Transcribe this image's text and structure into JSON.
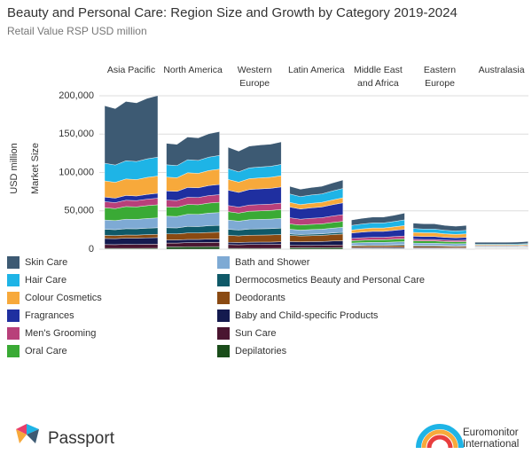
{
  "chart_data": {
    "type": "stacked-area-panels",
    "title": "Beauty and Personal Care: Region Size and Growth by Category 2019-2024",
    "subtitle": "Retail Value RSP USD million",
    "y_label": "USD million",
    "y_label_2": "Market Size",
    "ylim": [
      0,
      200000
    ],
    "yticks": [
      0,
      {
        "value": 50000,
        "label": "50,000"
      },
      {
        "value": 100000,
        "label": "100,000"
      },
      {
        "value": 150000,
        "label": "150,000"
      },
      {
        "value": 200000,
        "label": "200,000"
      }
    ],
    "grid": true,
    "groups": [
      "Asia Pacific",
      "North America",
      "Western Europe",
      "Latin America",
      "Middle East and Africa",
      "Eastern Europe",
      "Australasia"
    ],
    "series": [
      {
        "name": "Skin Care",
        "color": "#3d5a73",
        "values": [
          [
            75000,
            73500,
            77300,
            76500,
            78800,
            80300
          ],
          [
            28000,
            27700,
            29700,
            29400,
            30500,
            31100
          ],
          [
            28000,
            26900,
            28300,
            28600,
            28800,
            29400
          ],
          [
            10000,
            9500,
            9800,
            10000,
            10500,
            11000
          ],
          [
            7000,
            7400,
            7700,
            7700,
            8100,
            8700
          ],
          [
            7000,
            6800,
            6800,
            6400,
            6200,
            6400
          ],
          [
            2500,
            2500,
            2500,
            2500,
            2600,
            2800
          ]
        ]
      },
      {
        "name": "Hair Care",
        "color": "#1eb4e6",
        "values": [
          [
            23000,
            22500,
            23700,
            23500,
            24200,
            24600
          ],
          [
            16000,
            15800,
            17000,
            16800,
            17400,
            17800
          ],
          [
            14000,
            13400,
            14100,
            14300,
            14400,
            14700
          ],
          [
            11000,
            10500,
            10800,
            11000,
            11600,
            12100
          ],
          [
            6000,
            6300,
            6600,
            6600,
            7000,
            7400
          ],
          [
            5000,
            4900,
            4900,
            4600,
            4400,
            4600
          ],
          [
            1000,
            1000,
            1000,
            1000,
            1100,
            1100
          ]
        ]
      },
      {
        "name": "Colour Cosmetics",
        "color": "#f7a93b",
        "values": [
          [
            21000,
            20600,
            21600,
            21400,
            22100,
            22500
          ],
          [
            18000,
            17800,
            19100,
            18900,
            19600,
            20000
          ],
          [
            14000,
            13400,
            14100,
            14300,
            14400,
            14700
          ],
          [
            6000,
            5700,
            5900,
            6000,
            6300,
            6600
          ],
          [
            4000,
            4200,
            4400,
            4400,
            4600,
            5000
          ],
          [
            5000,
            4900,
            4900,
            4600,
            4400,
            4600
          ],
          [
            1200,
            1200,
            1200,
            1200,
            1300,
            1300
          ]
        ]
      },
      {
        "name": "Fragrances",
        "color": "#1f2fa0",
        "values": [
          [
            6000,
            5900,
            6200,
            6100,
            6300,
            6400
          ],
          [
            12000,
            11900,
            12700,
            12600,
            13100,
            13300
          ],
          [
            20000,
            19200,
            20200,
            20400,
            20600,
            21000
          ],
          [
            14000,
            13300,
            13700,
            14000,
            14700,
            15400
          ],
          [
            7000,
            7400,
            7700,
            7700,
            8100,
            8700
          ],
          [
            4000,
            3900,
            3900,
            3600,
            3500,
            3600
          ],
          [
            800,
            800,
            800,
            800,
            800,
            900
          ]
        ]
      },
      {
        "name": "Men's Grooming",
        "color": "#b8407a",
        "values": [
          [
            8000,
            7800,
            8200,
            8200,
            8400,
            8600
          ],
          [
            9000,
            8900,
            9500,
            9500,
            9800,
            10000
          ],
          [
            8000,
            7700,
            8100,
            8200,
            8200,
            8400
          ],
          [
            8000,
            7600,
            7800,
            8000,
            8400,
            8800
          ],
          [
            3000,
            3200,
            3300,
            3300,
            3500,
            3700
          ],
          [
            2000,
            1900,
            1900,
            1800,
            1800,
            1800
          ],
          [
            500,
            500,
            500,
            500,
            500,
            600
          ]
        ]
      },
      {
        "name": "Oral Care",
        "color": "#3aaa35",
        "values": [
          [
            16000,
            15700,
            16500,
            16300,
            16800,
            17100
          ],
          [
            12000,
            11900,
            12700,
            12600,
            13100,
            13300
          ],
          [
            11000,
            10600,
            11100,
            11200,
            11300,
            11600
          ],
          [
            7000,
            6700,
            6900,
            7000,
            7400,
            7700
          ],
          [
            3000,
            3200,
            3300,
            3300,
            3500,
            3700
          ],
          [
            3000,
            2900,
            2900,
            2700,
            2600,
            2700
          ],
          [
            600,
            600,
            600,
            600,
            600,
            700
          ]
        ]
      },
      {
        "name": "Bath and Shower",
        "color": "#7eaad4",
        "values": [
          [
            12000,
            11800,
            12400,
            12200,
            12600,
            12800
          ],
          [
            15000,
            14900,
            15900,
            15800,
            16400,
            16700
          ],
          [
            12000,
            11500,
            12100,
            12200,
            12400,
            12600
          ],
          [
            6000,
            5700,
            5900,
            6000,
            6300,
            6600
          ],
          [
            3000,
            3200,
            3300,
            3300,
            3500,
            3700
          ],
          [
            3000,
            2900,
            2900,
            2700,
            2600,
            2700
          ],
          [
            600,
            600,
            600,
            600,
            600,
            700
          ]
        ]
      },
      {
        "name": "Dermocosmetics Beauty and Personal Care",
        "color": "#0f5968",
        "values": [
          [
            8000,
            7800,
            8200,
            8200,
            8400,
            8600
          ],
          [
            8000,
            7900,
            8500,
            8400,
            8700,
            8900
          ],
          [
            8000,
            7700,
            8100,
            8200,
            8200,
            8400
          ],
          [
            2000,
            1900,
            2000,
            2000,
            2100,
            2200
          ],
          [
            1000,
            1100,
            1100,
            1100,
            1200,
            1200
          ],
          [
            1000,
            1000,
            1000,
            900,
            900,
            900
          ],
          [
            300,
            300,
            300,
            300,
            300,
            300
          ]
        ]
      },
      {
        "name": "Deodorants",
        "color": "#8a4a12",
        "values": [
          [
            4000,
            3900,
            4100,
            4100,
            4200,
            4300
          ],
          [
            8000,
            7900,
            8500,
            8400,
            8700,
            8900
          ],
          [
            9000,
            8600,
            9100,
            9200,
            9300,
            9500
          ],
          [
            8000,
            7600,
            7800,
            8000,
            8400,
            8800
          ],
          [
            2000,
            2100,
            2200,
            2200,
            2300,
            2500
          ],
          [
            2000,
            1900,
            1900,
            1800,
            1800,
            1800
          ],
          [
            500,
            500,
            500,
            500,
            500,
            600
          ]
        ]
      },
      {
        "name": "Baby and Child-specific Products",
        "color": "#141a4f",
        "values": [
          [
            8000,
            7800,
            8200,
            8200,
            8400,
            8600
          ],
          [
            4000,
            4000,
            4200,
            4200,
            4400,
            4400
          ],
          [
            3000,
            2900,
            3000,
            3100,
            3100,
            3200
          ],
          [
            5000,
            4800,
            4900,
            5000,
            5300,
            5500
          ],
          [
            1000,
            1100,
            1100,
            1100,
            1200,
            1200
          ],
          [
            1000,
            1000,
            1000,
            900,
            900,
            900
          ],
          [
            300,
            300,
            300,
            300,
            300,
            300
          ]
        ]
      },
      {
        "name": "Sun Care",
        "color": "#4a1530",
        "values": [
          [
            5000,
            4900,
            5200,
            5100,
            5300,
            5400
          ],
          [
            5000,
            5000,
            5300,
            5300,
            5500,
            5600
          ],
          [
            5000,
            4800,
            5100,
            5100,
            5200,
            5300
          ],
          [
            3000,
            2900,
            2900,
            3000,
            3200,
            3300
          ],
          [
            500,
            500,
            600,
            600,
            600,
            600
          ],
          [
            500,
            500,
            500,
            500,
            400,
            500
          ],
          [
            500,
            500,
            500,
            500,
            500,
            600
          ]
        ]
      },
      {
        "name": "Depilatories",
        "color": "#1a4d1a",
        "values": [
          [
            1000,
            1000,
            1000,
            1000,
            1100,
            1100
          ],
          [
            3000,
            3000,
            3200,
            3200,
            3300,
            3300
          ],
          [
            1000,
            1000,
            1000,
            1000,
            1000,
            1100
          ],
          [
            2000,
            1900,
            2000,
            2000,
            2100,
            2200
          ],
          [
            500,
            500,
            600,
            600,
            600,
            600
          ],
          [
            500,
            500,
            500,
            500,
            400,
            500
          ],
          [
            200,
            200,
            200,
            200,
            200,
            200
          ]
        ]
      }
    ]
  },
  "footer": {
    "left": "Passport",
    "right": "Euromonitor International"
  }
}
